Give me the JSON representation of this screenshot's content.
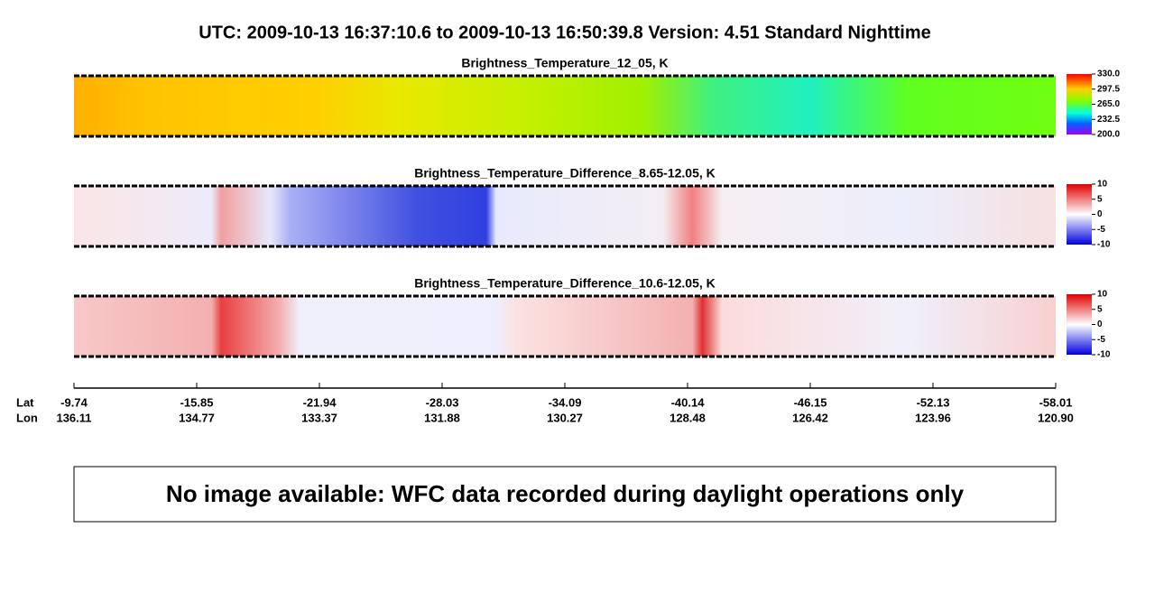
{
  "header": {
    "title": "UTC:  2009-10-13   16:37:10.6  to  2009-10-13   16:50:39.8    Version: 4.51  Standard Nighttime"
  },
  "panels": [
    {
      "title": "Brightness_Temperature_12_05, K",
      "colorbar_ticks": [
        "330.0",
        "297.5",
        "265.0",
        "232.5",
        "200.0"
      ]
    },
    {
      "title": "Brightness_Temperature_Difference_8.65-12.05, K",
      "colorbar_ticks": [
        "10",
        "5",
        "0",
        "-5",
        "-10"
      ]
    },
    {
      "title": "Brightness_Temperature_Difference_10.6-12.05, K",
      "colorbar_ticks": [
        "10",
        "5",
        "0",
        "-5",
        "-10"
      ]
    }
  ],
  "axis": {
    "lat_label": "Lat",
    "lon_label": "Lon",
    "ticks": [
      {
        "lat": "-9.74",
        "lon": "136.11"
      },
      {
        "lat": "-15.85",
        "lon": "134.77"
      },
      {
        "lat": "-21.94",
        "lon": "133.37"
      },
      {
        "lat": "-28.03",
        "lon": "131.88"
      },
      {
        "lat": "-34.09",
        "lon": "130.27"
      },
      {
        "lat": "-40.14",
        "lon": "128.48"
      },
      {
        "lat": "-46.15",
        "lon": "126.42"
      },
      {
        "lat": "-52.13",
        "lon": "123.96"
      },
      {
        "lat": "-58.01",
        "lon": "120.90"
      }
    ]
  },
  "notice": "No image available: WFC data recorded during daylight operations only"
}
